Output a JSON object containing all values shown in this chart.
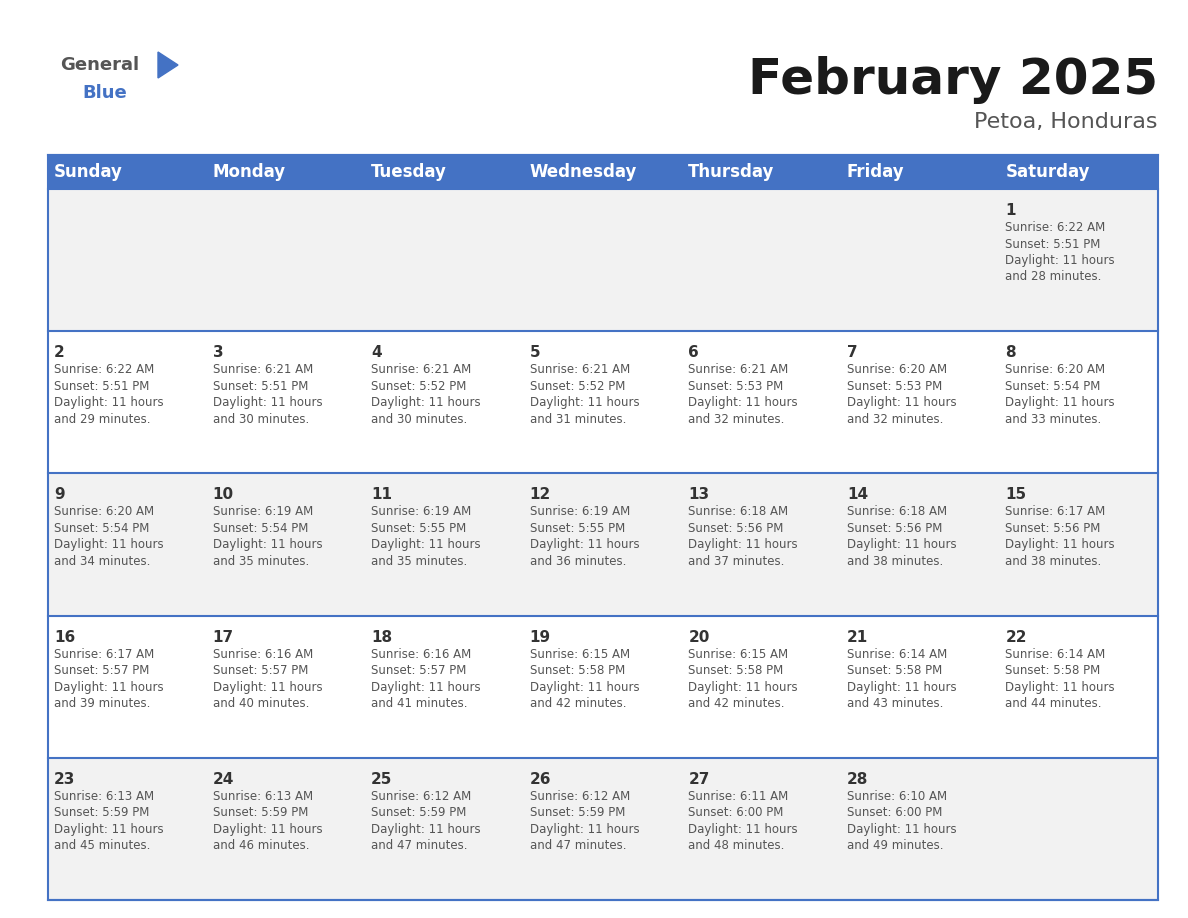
{
  "title": "February 2025",
  "subtitle": "Petoa, Honduras",
  "header_bg": "#4472C4",
  "header_text_color": "#FFFFFF",
  "cell_bg_row0": "#F2F2F2",
  "cell_bg_row1": "#FFFFFF",
  "cell_bg_row2": "#F2F2F2",
  "cell_bg_row3": "#FFFFFF",
  "cell_bg_row4": "#F2F2F2",
  "day_number_color": "#333333",
  "info_text_color": "#555555",
  "border_color": "#4472C4",
  "days_of_week": [
    "Sunday",
    "Monday",
    "Tuesday",
    "Wednesday",
    "Thursday",
    "Friday",
    "Saturday"
  ],
  "weeks": [
    [
      {
        "day": "",
        "sunrise": "",
        "sunset": "",
        "daylight": ""
      },
      {
        "day": "",
        "sunrise": "",
        "sunset": "",
        "daylight": ""
      },
      {
        "day": "",
        "sunrise": "",
        "sunset": "",
        "daylight": ""
      },
      {
        "day": "",
        "sunrise": "",
        "sunset": "",
        "daylight": ""
      },
      {
        "day": "",
        "sunrise": "",
        "sunset": "",
        "daylight": ""
      },
      {
        "day": "",
        "sunrise": "",
        "sunset": "",
        "daylight": ""
      },
      {
        "day": "1",
        "sunrise": "6:22 AM",
        "sunset": "5:51 PM",
        "daylight": "11 hours and 28 minutes."
      }
    ],
    [
      {
        "day": "2",
        "sunrise": "6:22 AM",
        "sunset": "5:51 PM",
        "daylight": "11 hours and 29 minutes."
      },
      {
        "day": "3",
        "sunrise": "6:21 AM",
        "sunset": "5:51 PM",
        "daylight": "11 hours and 30 minutes."
      },
      {
        "day": "4",
        "sunrise": "6:21 AM",
        "sunset": "5:52 PM",
        "daylight": "11 hours and 30 minutes."
      },
      {
        "day": "5",
        "sunrise": "6:21 AM",
        "sunset": "5:52 PM",
        "daylight": "11 hours and 31 minutes."
      },
      {
        "day": "6",
        "sunrise": "6:21 AM",
        "sunset": "5:53 PM",
        "daylight": "11 hours and 32 minutes."
      },
      {
        "day": "7",
        "sunrise": "6:20 AM",
        "sunset": "5:53 PM",
        "daylight": "11 hours and 32 minutes."
      },
      {
        "day": "8",
        "sunrise": "6:20 AM",
        "sunset": "5:54 PM",
        "daylight": "11 hours and 33 minutes."
      }
    ],
    [
      {
        "day": "9",
        "sunrise": "6:20 AM",
        "sunset": "5:54 PM",
        "daylight": "11 hours and 34 minutes."
      },
      {
        "day": "10",
        "sunrise": "6:19 AM",
        "sunset": "5:54 PM",
        "daylight": "11 hours and 35 minutes."
      },
      {
        "day": "11",
        "sunrise": "6:19 AM",
        "sunset": "5:55 PM",
        "daylight": "11 hours and 35 minutes."
      },
      {
        "day": "12",
        "sunrise": "6:19 AM",
        "sunset": "5:55 PM",
        "daylight": "11 hours and 36 minutes."
      },
      {
        "day": "13",
        "sunrise": "6:18 AM",
        "sunset": "5:56 PM",
        "daylight": "11 hours and 37 minutes."
      },
      {
        "day": "14",
        "sunrise": "6:18 AM",
        "sunset": "5:56 PM",
        "daylight": "11 hours and 38 minutes."
      },
      {
        "day": "15",
        "sunrise": "6:17 AM",
        "sunset": "5:56 PM",
        "daylight": "11 hours and 38 minutes."
      }
    ],
    [
      {
        "day": "16",
        "sunrise": "6:17 AM",
        "sunset": "5:57 PM",
        "daylight": "11 hours and 39 minutes."
      },
      {
        "day": "17",
        "sunrise": "6:16 AM",
        "sunset": "5:57 PM",
        "daylight": "11 hours and 40 minutes."
      },
      {
        "day": "18",
        "sunrise": "6:16 AM",
        "sunset": "5:57 PM",
        "daylight": "11 hours and 41 minutes."
      },
      {
        "day": "19",
        "sunrise": "6:15 AM",
        "sunset": "5:58 PM",
        "daylight": "11 hours and 42 minutes."
      },
      {
        "day": "20",
        "sunrise": "6:15 AM",
        "sunset": "5:58 PM",
        "daylight": "11 hours and 42 minutes."
      },
      {
        "day": "21",
        "sunrise": "6:14 AM",
        "sunset": "5:58 PM",
        "daylight": "11 hours and 43 minutes."
      },
      {
        "day": "22",
        "sunrise": "6:14 AM",
        "sunset": "5:58 PM",
        "daylight": "11 hours and 44 minutes."
      }
    ],
    [
      {
        "day": "23",
        "sunrise": "6:13 AM",
        "sunset": "5:59 PM",
        "daylight": "11 hours and 45 minutes."
      },
      {
        "day": "24",
        "sunrise": "6:13 AM",
        "sunset": "5:59 PM",
        "daylight": "11 hours and 46 minutes."
      },
      {
        "day": "25",
        "sunrise": "6:12 AM",
        "sunset": "5:59 PM",
        "daylight": "11 hours and 47 minutes."
      },
      {
        "day": "26",
        "sunrise": "6:12 AM",
        "sunset": "5:59 PM",
        "daylight": "11 hours and 47 minutes."
      },
      {
        "day": "27",
        "sunrise": "6:11 AM",
        "sunset": "6:00 PM",
        "daylight": "11 hours and 48 minutes."
      },
      {
        "day": "28",
        "sunrise": "6:10 AM",
        "sunset": "6:00 PM",
        "daylight": "11 hours and 49 minutes."
      },
      {
        "day": "",
        "sunrise": "",
        "sunset": "",
        "daylight": ""
      }
    ]
  ],
  "title_fontsize": 36,
  "subtitle_fontsize": 16,
  "header_fontsize": 12,
  "day_num_fontsize": 11,
  "info_fontsize": 8.5
}
